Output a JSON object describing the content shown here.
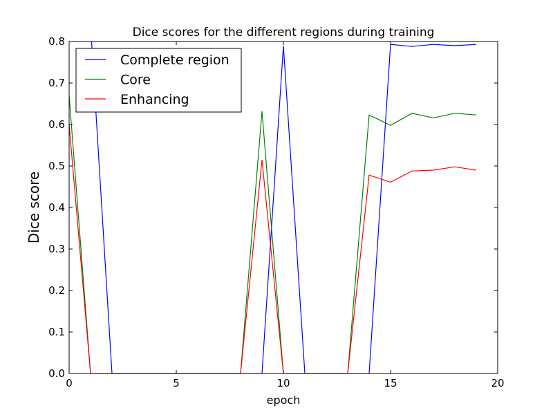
{
  "chart_data": {
    "type": "line",
    "title": "Dice scores for the different regions during training",
    "xlabel": "epoch",
    "ylabel": "Dice score",
    "xlim": [
      0,
      20
    ],
    "ylim": [
      0,
      0.8
    ],
    "x_ticks": [
      "0",
      "5",
      "10",
      "15",
      "20"
    ],
    "y_ticks": [
      "0.0",
      "0.1",
      "0.2",
      "0.3",
      "0.4",
      "0.5",
      "0.6",
      "0.7",
      "0.8"
    ],
    "grid": false,
    "legend_position": "top-left",
    "x": [
      0,
      1,
      2,
      3,
      4,
      5,
      6,
      7,
      8,
      9,
      10,
      11,
      12,
      13,
      14,
      15,
      16,
      17,
      18,
      19
    ],
    "series": [
      {
        "name": "Complete region",
        "color": "#0000ff",
        "values": [
          0.84,
          0.84,
          0.0,
          0.0,
          0.0,
          0.0,
          0.0,
          0.0,
          0.0,
          0.0,
          0.79,
          0.0,
          0.0,
          0.0,
          0.0,
          0.793,
          0.788,
          0.793,
          0.79,
          0.793
        ]
      },
      {
        "name": "Core",
        "color": "#008000",
        "values": [
          0.67,
          0.0,
          0.0,
          0.0,
          0.0,
          0.0,
          0.0,
          0.0,
          0.0,
          0.632,
          0.0,
          0.0,
          0.0,
          0.0,
          0.623,
          0.598,
          0.627,
          0.616,
          0.627,
          0.623
        ]
      },
      {
        "name": "Enhancing",
        "color": "#ff0000",
        "values": [
          0.6,
          0.0,
          0.0,
          0.0,
          0.0,
          0.0,
          0.0,
          0.0,
          0.0,
          0.515,
          0.0,
          0.0,
          0.0,
          0.0,
          0.478,
          0.461,
          0.488,
          0.49,
          0.498,
          0.49
        ]
      }
    ]
  }
}
